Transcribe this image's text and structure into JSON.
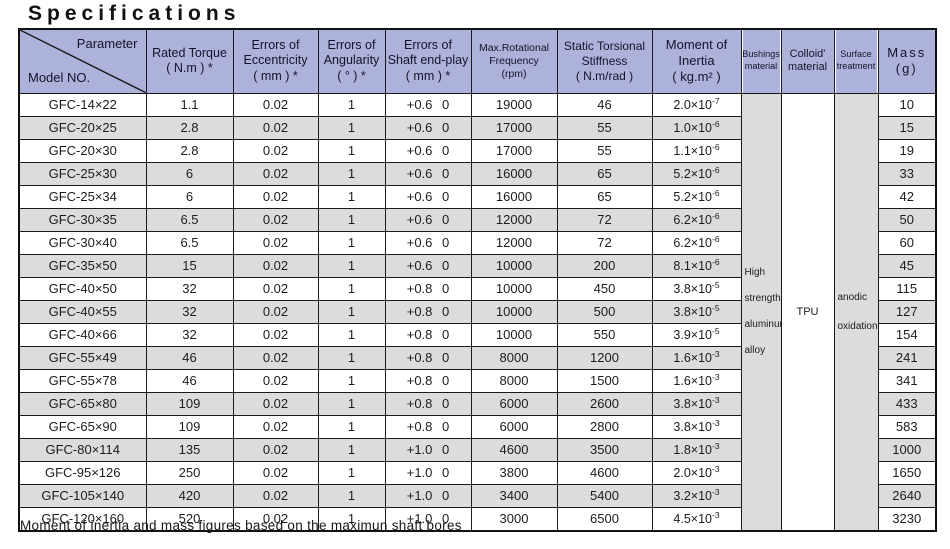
{
  "title": "Specifications",
  "footnote": "Moment of inertia and mass figures based on the maximun shaft bores",
  "colors": {
    "header_bg": "#acb2d9",
    "row_alt_bg": "#dcdcdc",
    "border": "#1a1a1a"
  },
  "table": {
    "corner": {
      "top": "Parameter",
      "bottom": "Model NO."
    },
    "headers": [
      "Rated Torque\n( N.m ) *",
      "Errors of\nEccentricity\n( mm ) *",
      "Errors of\nAngularity\n( ° ) *",
      "Errors of\nShaft end-play\n( mm ) *",
      "Max.Rotational\nFrequency\n(rpm)",
      "Static Torsional\nStiffness\n( N.m/rad )",
      "Moment of\nInertia\n( kg.m² )",
      "Bushings'\nmaterial",
      "Colloid'\nmaterial",
      "Surface\ntreatment",
      "Mass\n(g)"
    ],
    "merged": {
      "bushings": "High strength aluminum alloy",
      "colloid": "TPU",
      "surface": "anodic oxidation"
    },
    "rows": [
      {
        "model": "GFC-14×22",
        "torque": "1.1",
        "eccentricity": "0.02",
        "angularity": "1",
        "endplay": "+0.6 0",
        "frequency": "19000",
        "stiffness": "46",
        "inertia": "2.0×10^-7",
        "mass": "10"
      },
      {
        "model": "GFC-20×25",
        "torque": "2.8",
        "eccentricity": "0.02",
        "angularity": "1",
        "endplay": "+0.6 0",
        "frequency": "17000",
        "stiffness": "55",
        "inertia": "1.0×10^-6",
        "mass": "15"
      },
      {
        "model": "GFC-20×30",
        "torque": "2.8",
        "eccentricity": "0.02",
        "angularity": "1",
        "endplay": "+0.6 0",
        "frequency": "17000",
        "stiffness": "55",
        "inertia": "1.1×10^-6",
        "mass": "19"
      },
      {
        "model": "GFC-25×30",
        "torque": "6",
        "eccentricity": "0.02",
        "angularity": "1",
        "endplay": "+0.6 0",
        "frequency": "16000",
        "stiffness": "65",
        "inertia": "5.2×10^-6",
        "mass": "33"
      },
      {
        "model": "GFC-25×34",
        "torque": "6",
        "eccentricity": "0.02",
        "angularity": "1",
        "endplay": "+0.6 0",
        "frequency": "16000",
        "stiffness": "65",
        "inertia": "5.2×10^-6",
        "mass": "42"
      },
      {
        "model": "GFC-30×35",
        "torque": "6.5",
        "eccentricity": "0.02",
        "angularity": "1",
        "endplay": "+0.6 0",
        "frequency": "12000",
        "stiffness": "72",
        "inertia": "6.2×10^-6",
        "mass": "50"
      },
      {
        "model": "GFC-30×40",
        "torque": "6.5",
        "eccentricity": "0.02",
        "angularity": "1",
        "endplay": "+0.6 0",
        "frequency": "12000",
        "stiffness": "72",
        "inertia": "6.2×10^-6",
        "mass": "60"
      },
      {
        "model": "GFC-35×50",
        "torque": "15",
        "eccentricity": "0.02",
        "angularity": "1",
        "endplay": "+0.6 0",
        "frequency": "10000",
        "stiffness": "200",
        "inertia": "8.1×10^-6",
        "mass": "45"
      },
      {
        "model": "GFC-40×50",
        "torque": "32",
        "eccentricity": "0.02",
        "angularity": "1",
        "endplay": "+0.8 0",
        "frequency": "10000",
        "stiffness": "450",
        "inertia": "3.8×10^-5",
        "mass": "115"
      },
      {
        "model": "GFC-40×55",
        "torque": "32",
        "eccentricity": "0.02",
        "angularity": "1",
        "endplay": "+0.8 0",
        "frequency": "10000",
        "stiffness": "500",
        "inertia": "3.8×10^-5",
        "mass": "127"
      },
      {
        "model": "GFC-40×66",
        "torque": "32",
        "eccentricity": "0.02",
        "angularity": "1",
        "endplay": "+0.8 0",
        "frequency": "10000",
        "stiffness": "550",
        "inertia": "3.9×10^-5",
        "mass": "154"
      },
      {
        "model": "GFC-55×49",
        "torque": "46",
        "eccentricity": "0.02",
        "angularity": "1",
        "endplay": "+0.8 0",
        "frequency": "8000",
        "stiffness": "1200",
        "inertia": "1.6×10^-3",
        "mass": "241"
      },
      {
        "model": "GFC-55×78",
        "torque": "46",
        "eccentricity": "0.02",
        "angularity": "1",
        "endplay": "+0.8 0",
        "frequency": "8000",
        "stiffness": "1500",
        "inertia": "1.6×10^-3",
        "mass": "341"
      },
      {
        "model": "GFC-65×80",
        "torque": "109",
        "eccentricity": "0.02",
        "angularity": "1",
        "endplay": "+0.8 0",
        "frequency": "6000",
        "stiffness": "2600",
        "inertia": "3.8×10^-3",
        "mass": "433"
      },
      {
        "model": "GFC-65×90",
        "torque": "109",
        "eccentricity": "0.02",
        "angularity": "1",
        "endplay": "+0.8 0",
        "frequency": "6000",
        "stiffness": "2800",
        "inertia": "3.8×10^-3",
        "mass": "583"
      },
      {
        "model": "GFC-80×114",
        "torque": "135",
        "eccentricity": "0.02",
        "angularity": "1",
        "endplay": "+1.0 0",
        "frequency": "4600",
        "stiffness": "3500",
        "inertia": "1.8×10^-3",
        "mass": "1000"
      },
      {
        "model": "GFC-95×126",
        "torque": "250",
        "eccentricity": "0.02",
        "angularity": "1",
        "endplay": "+1.0 0",
        "frequency": "3800",
        "stiffness": "4600",
        "inertia": "2.0×10^-3",
        "mass": "1650"
      },
      {
        "model": "GFC-105×140",
        "torque": "420",
        "eccentricity": "0.02",
        "angularity": "1",
        "endplay": "+1.0 0",
        "frequency": "3400",
        "stiffness": "5400",
        "inertia": "3.2×10^-3",
        "mass": "2640"
      },
      {
        "model": "GFC-120×160",
        "torque": "520",
        "eccentricity": "0.02",
        "angularity": "1",
        "endplay": "+1.0 0",
        "frequency": "3000",
        "stiffness": "6500",
        "inertia": "4.5×10^-3",
        "mass": "3230"
      }
    ]
  }
}
